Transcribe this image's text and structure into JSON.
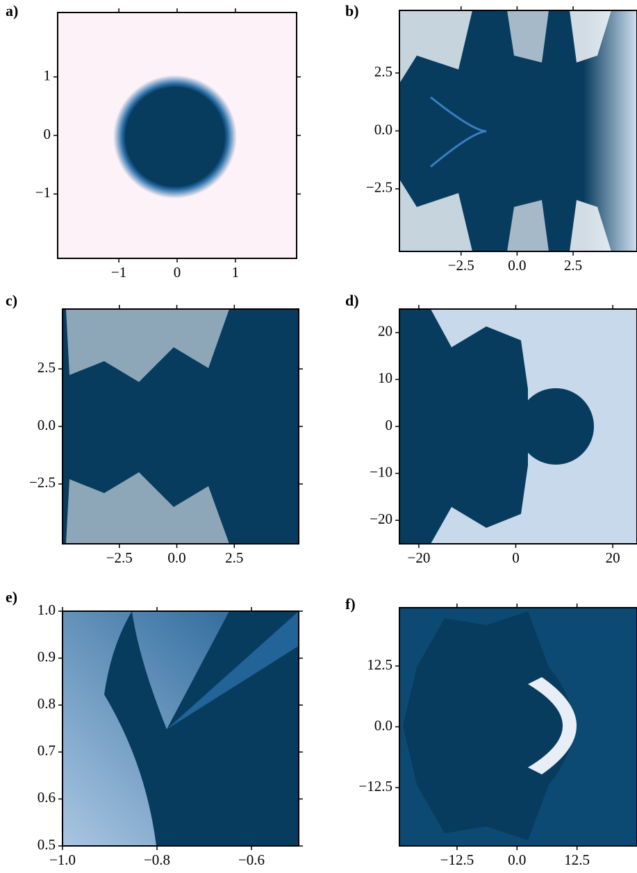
{
  "chart_data": [
    {
      "type": "heatmap",
      "label": "a)",
      "xlim": [
        -2.05,
        2.05
      ],
      "ylim": [
        -2.1,
        2.1
      ],
      "xticks": [
        {
          "value": -1,
          "label": "−1"
        },
        0,
        1
      ],
      "yticks": [
        {
          "value": -1,
          "label": "−1"
        },
        0,
        1
      ]
    },
    {
      "type": "heatmap",
      "label": "b)",
      "xlim": [
        -5.25,
        5.35
      ],
      "ylim": [
        -5.2,
        5.2
      ],
      "xticks": [
        {
          "value": -2.5,
          "label": "−2.5"
        },
        {
          "value": 0,
          "label": "0.0"
        },
        2.5
      ],
      "yticks": [
        {
          "value": -2.5,
          "label": "−2.5"
        },
        {
          "value": 0,
          "label": "0.0"
        },
        2.5
      ]
    },
    {
      "type": "heatmap",
      "label": "c)",
      "xlim": [
        -4.97,
        5.3
      ],
      "ylim": [
        -5.1,
        5.1
      ],
      "xticks": [
        {
          "value": -2.5,
          "label": "−2.5"
        },
        {
          "value": 0,
          "label": "0.0"
        },
        2.5
      ],
      "yticks": [
        {
          "value": -2.5,
          "label": "−2.5"
        },
        {
          "value": 0,
          "label": "0.0"
        },
        2.5
      ]
    },
    {
      "type": "heatmap",
      "label": "d)",
      "xlim": [
        -24,
        25
      ],
      "ylim": [
        -25,
        25
      ],
      "xticks": [
        {
          "value": -20,
          "label": "−20"
        },
        0,
        20
      ],
      "yticks": [
        {
          "value": -20,
          "label": "−20"
        },
        {
          "value": -10,
          "label": "−10"
        },
        0,
        10,
        20
      ]
    },
    {
      "type": "heatmap",
      "label": "e)",
      "xlim": [
        -1.0,
        -0.5
      ],
      "ylim": [
        0.5,
        1.0
      ],
      "xticks": [
        {
          "value": -1.0,
          "label": "−1.0"
        },
        {
          "value": -0.8,
          "label": "−0.8"
        },
        {
          "value": -0.6,
          "label": "−0.6"
        }
      ],
      "yticks": [
        0.5,
        0.6,
        0.7,
        0.8,
        0.9,
        {
          "value": 1.0,
          "label": "1.0"
        }
      ]
    },
    {
      "type": "heatmap",
      "label": "f)",
      "xlim": [
        -24.5,
        25
      ],
      "ylim": [
        -24.5,
        24.5
      ],
      "xticks": [
        {
          "value": -12.5,
          "label": "−12.5"
        },
        {
          "value": 0,
          "label": "0.0"
        },
        12.5
      ],
      "yticks": [
        {
          "value": -12.5,
          "label": "−12.5"
        },
        {
          "value": 0,
          "label": "0.0"
        },
        12.5
      ]
    }
  ]
}
